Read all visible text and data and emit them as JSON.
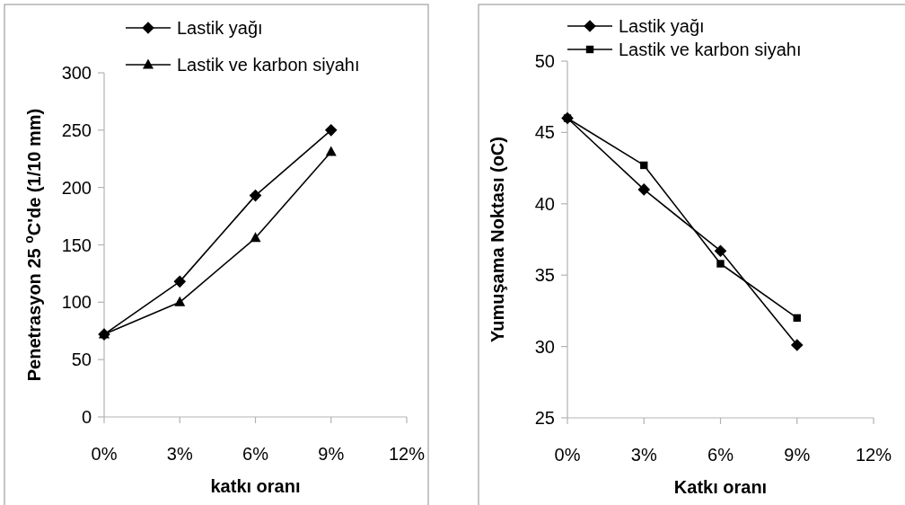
{
  "chart_data": [
    {
      "type": "line",
      "xlabel": "katkı oranı",
      "ylabel": "Penetrasyon 25 $^{o}$C'de (1/10 mm)",
      "x": [
        0,
        3,
        6,
        9
      ],
      "series": [
        {
          "name": "Lastik yağı",
          "color": "#000000",
          "marker": "diamond",
          "values": [
            72,
            118,
            193,
            250
          ]
        },
        {
          "name": "Lastik ve karbon siyahı",
          "color": "#000000",
          "marker": "triangle",
          "values": [
            72,
            100,
            156,
            231
          ]
        }
      ],
      "xlim": [
        0,
        12
      ],
      "xticks": [
        {
          "value": 0,
          "label": "0%"
        },
        {
          "value": 3,
          "label": "3%"
        },
        {
          "value": 6,
          "label": "6%"
        },
        {
          "value": 9,
          "label": "9%"
        },
        {
          "value": 12,
          "label": "12%"
        }
      ],
      "ylim": [
        0,
        300
      ],
      "yticks": [
        0,
        50,
        100,
        150,
        200,
        250,
        300
      ],
      "legend": "top",
      "line_style": "solid"
    },
    {
      "type": "line",
      "xlabel": "Katkı oranı",
      "ylabel": "Yumuşama Noktası (oC)",
      "x": [
        0,
        3,
        6,
        9
      ],
      "series": [
        {
          "name": "Lastik yağı",
          "color": "#000000",
          "marker": "diamond",
          "values": [
            46,
            41,
            36.7,
            30.1
          ]
        },
        {
          "name": "Lastik ve karbon siyahı",
          "color": "#000000",
          "marker": "square",
          "values": [
            46,
            42.7,
            35.8,
            32
          ]
        }
      ],
      "xlim": [
        0,
        12
      ],
      "xticks": [
        {
          "value": 0,
          "label": "0%"
        },
        {
          "value": 3,
          "label": "3%"
        },
        {
          "value": 6,
          "label": "6%"
        },
        {
          "value": 9,
          "label": "9%"
        },
        {
          "value": 12,
          "label": "12%"
        }
      ],
      "ylim": [
        25,
        50
      ],
      "yticks": [
        25,
        30,
        35,
        40,
        45,
        50
      ],
      "legend": "top",
      "line_style": "solid"
    }
  ]
}
